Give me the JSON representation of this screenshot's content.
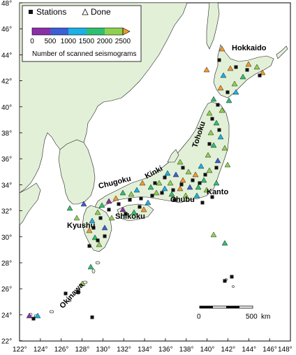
{
  "legend": {
    "stations_label": "Stations",
    "done_label": "Done",
    "colorbar_ticks": [
      "0",
      "500",
      "1000",
      "1500",
      "2000",
      "2500"
    ],
    "colorbar_colors": [
      "#8b2fa8",
      "#3a5fd6",
      "#19b1e6",
      "#2fbf71",
      "#8fd14f",
      "#f39a2c"
    ],
    "colorbar_title": "Number of scanned seismograms"
  },
  "axes": {
    "lat_labels": [
      "48°",
      "46°",
      "44°",
      "42°",
      "40°",
      "38°",
      "36°",
      "34°",
      "32°",
      "30°",
      "28°",
      "26°",
      "24°",
      "22°"
    ],
    "lon_labels": [
      "122°",
      "124°",
      "126°",
      "128°",
      "130°",
      "132°",
      "134°",
      "136°",
      "138°",
      "140°",
      "142°",
      "144°",
      "146°",
      "148°"
    ]
  },
  "regions": [
    {
      "name": "Hokkaido"
    },
    {
      "name": "Tohoku"
    },
    {
      "name": "Kanto"
    },
    {
      "name": "Chubu"
    },
    {
      "name": "Kinki"
    },
    {
      "name": "Chugoku"
    },
    {
      "name": "Shikoku"
    },
    {
      "name": "Kyushu"
    },
    {
      "name": "Okinawa"
    }
  ],
  "scalebar": {
    "start_label": "0",
    "end_label": "500",
    "unit_label": "km"
  },
  "colors": {
    "land": "#e3f0d8",
    "water": "#ffffff",
    "coast": "#222222",
    "station": "#111111"
  }
}
